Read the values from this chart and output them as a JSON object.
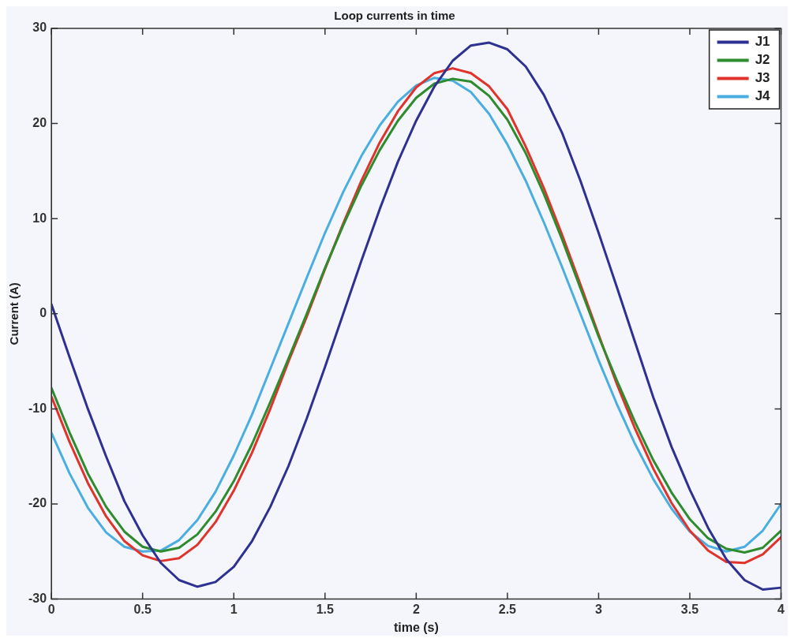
{
  "chart_data": {
    "type": "line",
    "title": "Loop currents in time",
    "xlabel": "time (s)",
    "ylabel": "Current (A)",
    "x": [
      0,
      0.1,
      0.2,
      0.3,
      0.4,
      0.5,
      0.6,
      0.7,
      0.8,
      0.9,
      1,
      1.1,
      1.2,
      1.3,
      1.4,
      1.5,
      1.6,
      1.7,
      1.8,
      1.9,
      2,
      2.1,
      2.2,
      2.3,
      2.4,
      2.5,
      2.6,
      2.7,
      2.8,
      2.9,
      3,
      3.1,
      3.2,
      3.3,
      3.4,
      3.5,
      3.6,
      3.7,
      3.8,
      3.9,
      4
    ],
    "series": [
      {
        "name": "J1",
        "color": "#2e3192",
        "values": [
          1,
          -4.6,
          -10,
          -15,
          -19.7,
          -23.3,
          -26.2,
          -28,
          -28.7,
          -28.2,
          -26.6,
          -23.9,
          -20.3,
          -16,
          -11,
          -5.6,
          0,
          5.6,
          11,
          16,
          20.3,
          23.9,
          26.6,
          28.2,
          28.5,
          27.8,
          26,
          23,
          19,
          14,
          8.5,
          2.8,
          -3,
          -8.8,
          -14,
          -18.5,
          -22.5,
          -25.8,
          -28,
          -29,
          -28.8
        ]
      },
      {
        "name": "J2",
        "color": "#2e8b2e",
        "values": [
          -7.8,
          -12.5,
          -16.8,
          -20.3,
          -22.9,
          -24.5,
          -25,
          -24.6,
          -23.2,
          -20.8,
          -17.6,
          -13.7,
          -9.3,
          -4.7,
          0,
          4.8,
          9.3,
          13.5,
          17.2,
          20.3,
          22.7,
          24.2,
          24.7,
          24.4,
          22.9,
          20.4,
          16.9,
          12.6,
          7.8,
          2.7,
          -2.4,
          -7,
          -11.4,
          -15.4,
          -18.8,
          -21.6,
          -23.6,
          -24.7,
          -25.1,
          -24.6,
          -22.8
        ]
      },
      {
        "name": "J3",
        "color": "#e0332b",
        "values": [
          -8.7,
          -13.5,
          -17.8,
          -21.3,
          -23.9,
          -25.4,
          -26,
          -25.7,
          -24.3,
          -21.9,
          -18.6,
          -14.6,
          -10,
          -5,
          -0.3,
          4.7,
          9.5,
          14,
          18,
          21.3,
          23.8,
          25.3,
          25.8,
          25.3,
          23.9,
          21.5,
          17.6,
          13.2,
          8.3,
          3.1,
          -2.2,
          -7.4,
          -12.1,
          -16.3,
          -19.9,
          -22.8,
          -24.9,
          -26.1,
          -26.2,
          -25.3,
          -23.5
        ]
      },
      {
        "name": "J4",
        "color": "#4aaee0",
        "values": [
          -12.5,
          -16.8,
          -20.4,
          -23,
          -24.5,
          -25,
          -24.9,
          -23.8,
          -21.7,
          -18.7,
          -14.9,
          -10.6,
          -5.8,
          -1,
          3.8,
          8.5,
          12.8,
          16.6,
          19.8,
          22.3,
          24,
          24.8,
          24.5,
          23.3,
          21,
          17.8,
          14,
          9.6,
          4.9,
          0,
          -4.9,
          -9.5,
          -13.7,
          -17.4,
          -20.5,
          -22.9,
          -24.4,
          -25,
          -24.5,
          -22.8,
          -20
        ]
      }
    ],
    "xlim": [
      0,
      4
    ],
    "xticks": [
      0,
      0.5,
      1,
      1.5,
      2,
      2.5,
      3,
      3.5,
      4
    ],
    "ylim": [
      -30,
      30
    ],
    "yticks": [
      -30,
      -20,
      -10,
      0,
      10,
      20,
      30
    ],
    "legend": "top right",
    "marker": "none",
    "line_style": "solid"
  }
}
